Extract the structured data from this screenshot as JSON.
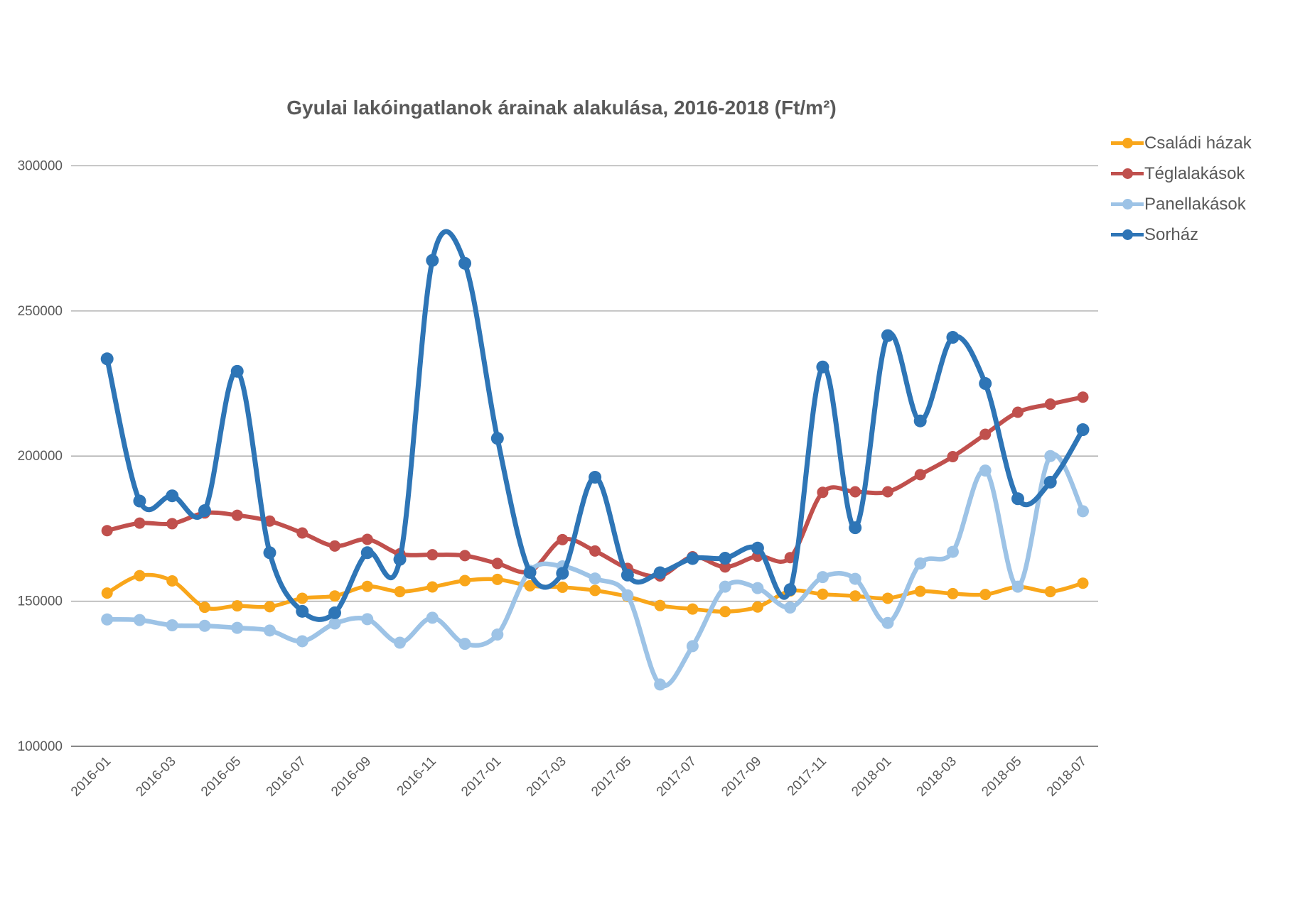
{
  "title": "Gyulai lakóingatlanok árainak alakulása, 2016-2018 (Ft/m²)",
  "chart_data": {
    "type": "line",
    "title": "Gyulai lakóingatlanok árainak alakulása, 2016-2018 (Ft/m²)",
    "xlabel": "",
    "ylabel": "",
    "ylim": [
      100000,
      300000
    ],
    "y_ticks": [
      100000,
      150000,
      200000,
      250000,
      300000
    ],
    "grid": true,
    "legend_position": "right",
    "x_label_every": 2,
    "categories": [
      "2016-01",
      "2016-02",
      "2016-03",
      "2016-04",
      "2016-05",
      "2016-06",
      "2016-07",
      "2016-08",
      "2016-09",
      "2016-10",
      "2016-11",
      "2016-12",
      "2017-01",
      "2017-02",
      "2017-03",
      "2017-04",
      "2017-05",
      "2017-06",
      "2017-07",
      "2017-08",
      "2017-09",
      "2017-10",
      "2017-11",
      "2017-12",
      "2018-01",
      "2018-02",
      "2018-03",
      "2018-04",
      "2018-05",
      "2018-06",
      "2018-07"
    ],
    "series": [
      {
        "name": "Családi házak",
        "color": "#F9A61A",
        "line_width": 5.5,
        "marker_radius": 8,
        "values": [
          152800,
          158800,
          157000,
          147900,
          148400,
          148100,
          151000,
          151800,
          155100,
          153300,
          154900,
          157100,
          157500,
          155300,
          154800,
          153700,
          151600,
          148500,
          147300,
          146400,
          148000,
          153500,
          152400,
          151800,
          151000,
          153400,
          152600,
          152300,
          154900,
          153300,
          156200
        ]
      },
      {
        "name": "Téglalakások",
        "color": "#C0504D",
        "line_width": 6,
        "marker_radius": 8,
        "values": [
          174300,
          176900,
          176700,
          180400,
          179600,
          177600,
          173500,
          169000,
          171300,
          166300,
          166000,
          165700,
          163000,
          160300,
          171200,
          167300,
          161300,
          158700,
          165300,
          161800,
          165500,
          165000,
          187500,
          187700,
          187700,
          193600,
          199800,
          207500,
          215100,
          217900,
          220300
        ]
      },
      {
        "name": "Panellakások",
        "color": "#9DC3E6",
        "line_width": 6.5,
        "marker_radius": 8.5,
        "values": [
          143700,
          143500,
          141700,
          141500,
          140800,
          139900,
          136200,
          142300,
          143800,
          135700,
          144300,
          135300,
          138500,
          160500,
          162000,
          157800,
          152000,
          121300,
          134500,
          155000,
          154500,
          147800,
          158300,
          157700,
          142500,
          163000,
          167000,
          195000,
          155000,
          200000,
          181000
        ]
      },
      {
        "name": "Sorház",
        "color": "#2E75B6",
        "line_width": 7,
        "marker_radius": 9,
        "values": [
          233500,
          184500,
          186300,
          181200,
          229200,
          166700,
          146500,
          146000,
          166700,
          164400,
          267400,
          266400,
          206100,
          159900,
          159600,
          192700,
          159000,
          159800,
          164700,
          164800,
          168300,
          154000,
          230700,
          175300,
          241500,
          212100,
          240900,
          225000,
          185300,
          191000,
          209100
        ]
      }
    ],
    "axis_text_color": "#595959",
    "gridline_color": "#A6A6A6",
    "baseline_color": "#7F7F7F"
  },
  "legend": {
    "items": [
      {
        "label": "Családi házak"
      },
      {
        "label": "Téglalakások"
      },
      {
        "label": "Panellakások"
      },
      {
        "label": "Sorház"
      }
    ]
  }
}
